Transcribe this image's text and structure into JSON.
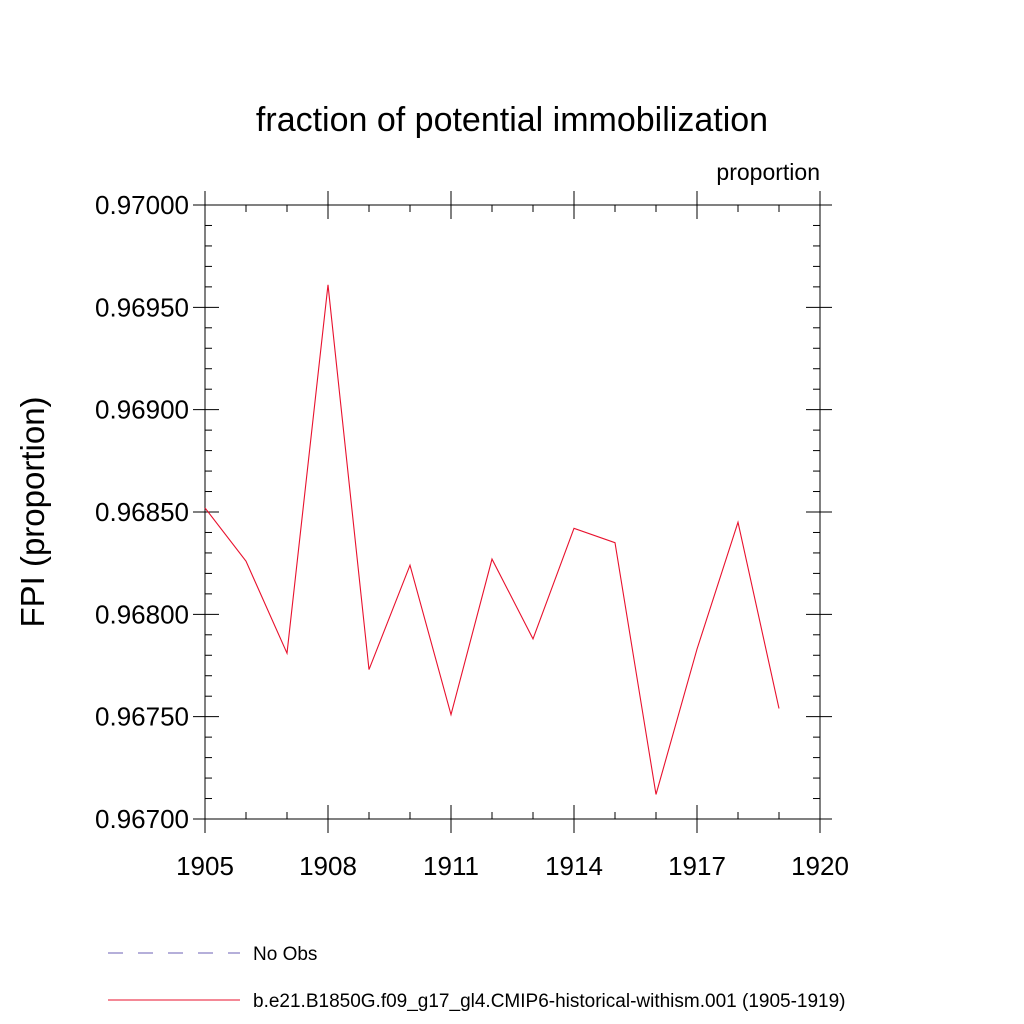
{
  "chart_data": {
    "type": "line",
    "title": "fraction of potential immobilization",
    "subtitle_right": "proportion",
    "ylabel": "FPI  (proportion)",
    "xlabel": "",
    "xlim": [
      1905,
      1920
    ],
    "ylim": [
      0.967,
      0.97
    ],
    "x_ticks": [
      1905,
      1908,
      1911,
      1914,
      1917,
      1920
    ],
    "y_ticks": [
      0.967,
      0.9675,
      0.968,
      0.9685,
      0.969,
      0.9695,
      0.97
    ],
    "y_tick_labels": [
      "0.96700",
      "0.96750",
      "0.96800",
      "0.96850",
      "0.96900",
      "0.96950",
      "0.97000"
    ],
    "grid": false,
    "legend_position": "bottom-left",
    "series": [
      {
        "name": "b.e21.B1850G.f09_g17_gl4.CMIP6-historical-withism.001 (1905-1919)",
        "color": "#e8112d",
        "style": "solid",
        "x": [
          1905,
          1906,
          1907,
          1908,
          1909,
          1910,
          1911,
          1912,
          1913,
          1914,
          1915,
          1916,
          1917,
          1918,
          1919
        ],
        "values": [
          0.96852,
          0.96826,
          0.96781,
          0.96961,
          0.96773,
          0.96824,
          0.96751,
          0.96827,
          0.96788,
          0.96842,
          0.96835,
          0.96712,
          0.96783,
          0.96845,
          0.96754
        ]
      }
    ],
    "legend": [
      {
        "label": "No Obs",
        "color": "#6b5fb5",
        "style": "dashed"
      },
      {
        "label": "b.e21.B1850G.f09_g17_gl4.CMIP6-historical-withism.001 (1905-1919)",
        "color": "#e8112d",
        "style": "solid"
      }
    ]
  }
}
